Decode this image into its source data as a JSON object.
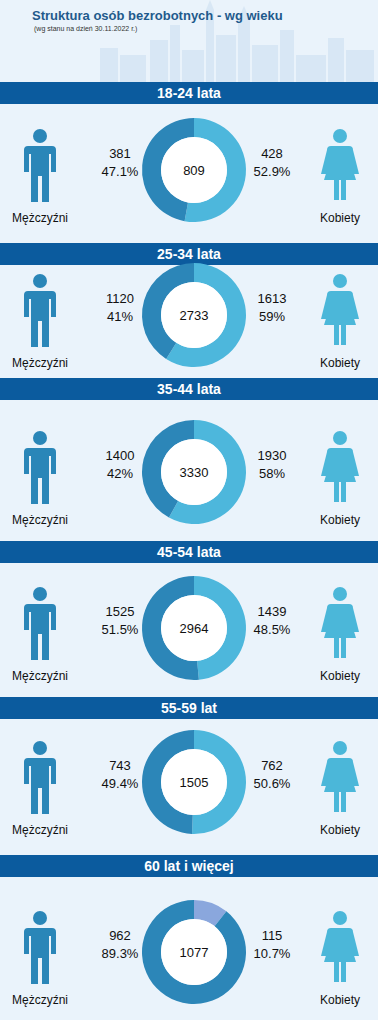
{
  "header": {
    "title": "Struktura osób bezrobotnych - wg wieku",
    "subtitle": "(wg stanu na dzień 30.11.2022 r.)"
  },
  "chart_data": [
    {
      "type": "pie",
      "title": "18-24 lata",
      "categories": [
        "Mężczyźni",
        "Kobiety"
      ],
      "values": [
        47.1,
        52.9
      ],
      "value_labels": [
        "47.1%",
        "52.9%"
      ],
      "counts": [
        381,
        428
      ],
      "total": 809,
      "colors": [
        "#2c86b8",
        "#4db7dc"
      ],
      "data_labels": true
    },
    {
      "type": "pie",
      "title": "25-34 lata",
      "categories": [
        "Mężczyźni",
        "Kobiety"
      ],
      "values": [
        41,
        59
      ],
      "value_labels": [
        "41%",
        "59%"
      ],
      "counts": [
        1120,
        1613
      ],
      "total": 2733,
      "colors": [
        "#2c86b8",
        "#4db7dc"
      ],
      "data_labels": true
    },
    {
      "type": "pie",
      "title": "35-44 lata",
      "categories": [
        "Mężczyźni",
        "Kobiety"
      ],
      "values": [
        42,
        58
      ],
      "value_labels": [
        "42%",
        "58%"
      ],
      "counts": [
        1400,
        1930
      ],
      "total": 3330,
      "colors": [
        "#2c86b8",
        "#4db7dc"
      ],
      "data_labels": true
    },
    {
      "type": "pie",
      "title": "45-54 lata",
      "categories": [
        "Mężczyźni",
        "Kobiety"
      ],
      "values": [
        51.5,
        48.5
      ],
      "value_labels": [
        "51.5%",
        "48.5%"
      ],
      "counts": [
        1525,
        1439
      ],
      "total": 2964,
      "colors": [
        "#2c86b8",
        "#4db7dc"
      ],
      "data_labels": true
    },
    {
      "type": "pie",
      "title": "55-59 lat",
      "categories": [
        "Mężczyźni",
        "Kobiety"
      ],
      "values": [
        49.4,
        50.6
      ],
      "value_labels": [
        "49.4%",
        "50.6%"
      ],
      "counts": [
        743,
        762
      ],
      "total": 1505,
      "colors": [
        "#2c86b8",
        "#4db7dc"
      ],
      "data_labels": true
    },
    {
      "type": "pie",
      "title": "60 lat i więcej",
      "categories": [
        "Mężczyźni",
        "Kobiety"
      ],
      "values": [
        89.3,
        10.7
      ],
      "value_labels": [
        "89.3%",
        "10.7%"
      ],
      "counts": [
        962,
        115
      ],
      "total": 1077,
      "colors": [
        "#2c86b8",
        "#8aa7dd"
      ],
      "data_labels": true
    }
  ]
}
